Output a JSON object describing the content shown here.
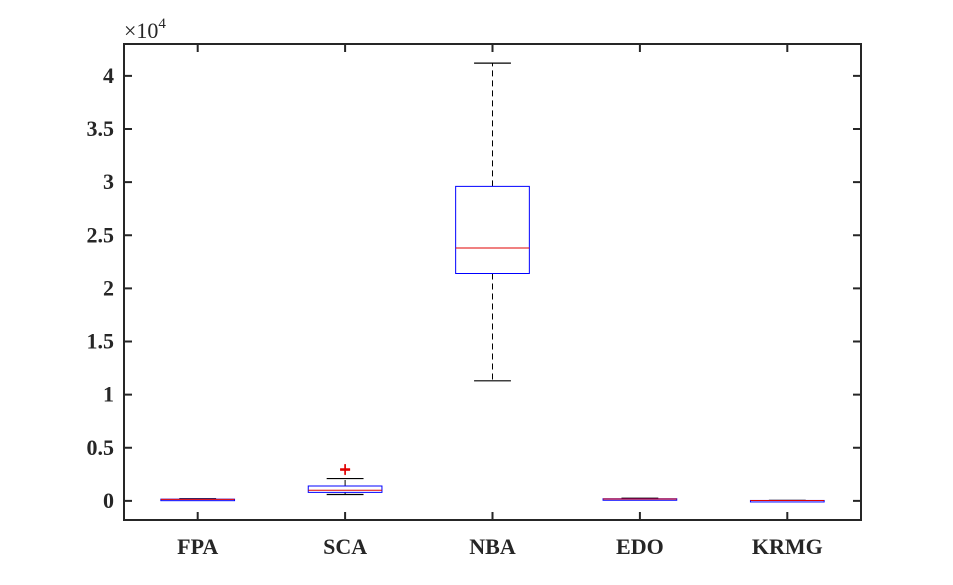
{
  "chart_data": {
    "type": "boxplot",
    "title": "",
    "xlabel": "",
    "ylabel": "",
    "y_scale_label": {
      "prefix": "×10",
      "exponent": "4"
    },
    "ylim": [
      -0.18,
      4.3
    ],
    "yticks": [
      0,
      0.5,
      1,
      1.5,
      2,
      2.5,
      3,
      3.5,
      4
    ],
    "ytick_labels": [
      "0",
      "0.5",
      "1",
      "1.5",
      "2",
      "2.5",
      "3",
      "3.5",
      "4"
    ],
    "categories": [
      "FPA",
      "SCA",
      "NBA",
      "EDO",
      "KRMG"
    ],
    "boxes": [
      {
        "name": "FPA",
        "min": 0.01,
        "q1": 0.012,
        "median": 0.014,
        "q3": 0.016,
        "max": 0.02,
        "outliers": []
      },
      {
        "name": "SCA",
        "min": 0.06,
        "q1": 0.08,
        "median": 0.1,
        "q3": 0.14,
        "max": 0.21,
        "outliers": [
          0.29,
          0.3
        ]
      },
      {
        "name": "NBA",
        "min": 1.13,
        "q1": 2.14,
        "median": 2.38,
        "q3": 2.96,
        "max": 4.12,
        "outliers": []
      },
      {
        "name": "EDO",
        "min": 0.015,
        "q1": 0.016,
        "median": 0.018,
        "q3": 0.02,
        "max": 0.025,
        "outliers": []
      },
      {
        "name": "KRMG",
        "min": 0.001,
        "q1": 0.002,
        "median": 0.003,
        "q3": 0.004,
        "max": 0.005,
        "outliers": []
      }
    ],
    "colors": {
      "box": "#0000ff",
      "median": "#e00000",
      "whisker": "#000000",
      "outlier": "#e00000",
      "axis": "#262626"
    },
    "grid": false,
    "legend": "none"
  }
}
